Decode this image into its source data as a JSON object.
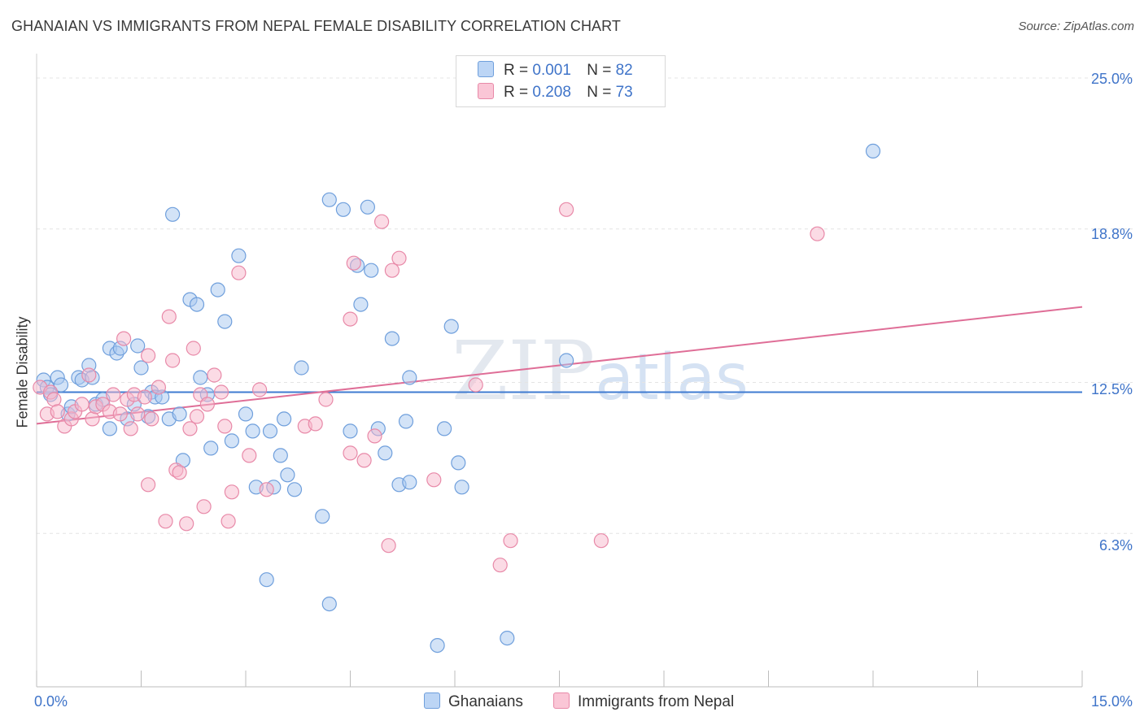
{
  "header": {
    "title": "GHANAIAN VS IMMIGRANTS FROM NEPAL FEMALE DISABILITY CORRELATION CHART",
    "source": "Source: ZipAtlas.com"
  },
  "watermark": {
    "zip": "ZIP",
    "atlas": "atlas"
  },
  "legend": {
    "row1": {
      "r_label": "R =",
      "r_value": "0.001",
      "n_label": "N =",
      "n_value": "82"
    },
    "row2": {
      "r_label": "R =",
      "r_value": "0.208",
      "n_label": "N =",
      "n_value": "73"
    }
  },
  "bottom_legend": {
    "series1": "Ghanaians",
    "series2": "Immigrants from Nepal"
  },
  "colors": {
    "blue_fill": "#a8c8f0",
    "blue_stroke": "#6f9fdc",
    "blue_line": "#3f7bd0",
    "pink_fill": "#f7b7cb",
    "pink_stroke": "#e889a8",
    "pink_line": "#df6e97",
    "tick_text": "#3f74c9",
    "grid": "#e4e4e4"
  },
  "chart_data": {
    "type": "scatter",
    "title": "GHANAIAN VS IMMIGRANTS FROM NEPAL FEMALE DISABILITY CORRELATION CHART",
    "xlabel": "",
    "ylabel": "Female Disability",
    "xlim": [
      0,
      15
    ],
    "ylim": [
      0,
      25.8
    ],
    "x_tick_labels": [
      "0.0%",
      "15.0%"
    ],
    "y_ticks": [
      6.3,
      12.5,
      18.8,
      25.0
    ],
    "y_tick_labels": [
      "6.3%",
      "12.5%",
      "18.8%",
      "25.0%"
    ],
    "grid": "horizontal dashed",
    "legend_position": "top-center",
    "series": [
      {
        "name": "Ghanaians",
        "R": 0.001,
        "N": 82,
        "trend": {
          "x": [
            0,
            15
          ],
          "y": [
            12.1,
            12.1
          ]
        },
        "points": [
          [
            0.1,
            12.6
          ],
          [
            0.15,
            12.3
          ],
          [
            0.2,
            12.0
          ],
          [
            0.3,
            12.7
          ],
          [
            0.35,
            12.4
          ],
          [
            0.45,
            11.2
          ],
          [
            0.5,
            11.5
          ],
          [
            0.6,
            12.7
          ],
          [
            0.65,
            12.6
          ],
          [
            0.75,
            13.2
          ],
          [
            0.8,
            12.7
          ],
          [
            0.85,
            11.6
          ],
          [
            0.95,
            11.8
          ],
          [
            1.05,
            10.6
          ],
          [
            1.05,
            13.9
          ],
          [
            1.15,
            13.7
          ],
          [
            1.2,
            13.9
          ],
          [
            1.3,
            11.0
          ],
          [
            1.4,
            11.6
          ],
          [
            1.45,
            14.0
          ],
          [
            1.5,
            13.1
          ],
          [
            1.6,
            11.1
          ],
          [
            1.65,
            12.1
          ],
          [
            1.7,
            11.9
          ],
          [
            1.8,
            11.9
          ],
          [
            1.9,
            11.0
          ],
          [
            1.95,
            19.4
          ],
          [
            2.05,
            11.2
          ],
          [
            2.1,
            9.3
          ],
          [
            2.2,
            15.9
          ],
          [
            2.3,
            15.7
          ],
          [
            2.35,
            12.7
          ],
          [
            2.45,
            12.0
          ],
          [
            2.5,
            9.8
          ],
          [
            2.6,
            16.3
          ],
          [
            2.7,
            15.0
          ],
          [
            2.8,
            10.1
          ],
          [
            2.9,
            17.7
          ],
          [
            3.0,
            11.2
          ],
          [
            3.1,
            10.5
          ],
          [
            3.15,
            8.2
          ],
          [
            3.3,
            4.4
          ],
          [
            3.35,
            10.5
          ],
          [
            3.4,
            8.2
          ],
          [
            3.5,
            9.5
          ],
          [
            3.55,
            11.0
          ],
          [
            3.6,
            8.7
          ],
          [
            3.7,
            8.1
          ],
          [
            3.8,
            13.1
          ],
          [
            4.1,
            7.0
          ],
          [
            4.2,
            3.4
          ],
          [
            4.2,
            20.0
          ],
          [
            4.4,
            19.6
          ],
          [
            4.5,
            10.5
          ],
          [
            4.6,
            17.3
          ],
          [
            4.65,
            15.7
          ],
          [
            4.75,
            19.7
          ],
          [
            4.8,
            17.1
          ],
          [
            4.9,
            10.6
          ],
          [
            5.0,
            9.6
          ],
          [
            5.1,
            14.3
          ],
          [
            5.2,
            8.3
          ],
          [
            5.3,
            10.9
          ],
          [
            5.35,
            8.4
          ],
          [
            5.35,
            12.7
          ],
          [
            5.75,
            1.7
          ],
          [
            5.85,
            10.6
          ],
          [
            5.95,
            14.8
          ],
          [
            6.05,
            9.2
          ],
          [
            6.1,
            8.2
          ],
          [
            6.75,
            2.0
          ],
          [
            7.6,
            13.4
          ],
          [
            12.0,
            22.0
          ]
        ]
      },
      {
        "name": "Immigrants from Nepal",
        "R": 0.208,
        "N": 73,
        "trend": {
          "x": [
            0,
            15
          ],
          "y": [
            10.8,
            15.6
          ]
        },
        "points": [
          [
            0.05,
            12.3
          ],
          [
            0.15,
            11.2
          ],
          [
            0.2,
            12.1
          ],
          [
            0.25,
            11.8
          ],
          [
            0.3,
            11.3
          ],
          [
            0.4,
            10.7
          ],
          [
            0.5,
            11.0
          ],
          [
            0.55,
            11.3
          ],
          [
            0.65,
            11.6
          ],
          [
            0.75,
            12.8
          ],
          [
            0.8,
            11.0
          ],
          [
            0.85,
            11.5
          ],
          [
            0.95,
            11.6
          ],
          [
            1.05,
            11.3
          ],
          [
            1.1,
            12.0
          ],
          [
            1.2,
            11.2
          ],
          [
            1.25,
            14.3
          ],
          [
            1.3,
            11.8
          ],
          [
            1.35,
            10.6
          ],
          [
            1.4,
            12.0
          ],
          [
            1.45,
            11.2
          ],
          [
            1.55,
            11.9
          ],
          [
            1.6,
            8.3
          ],
          [
            1.6,
            13.6
          ],
          [
            1.65,
            11.0
          ],
          [
            1.75,
            12.3
          ],
          [
            1.85,
            6.8
          ],
          [
            1.9,
            15.2
          ],
          [
            1.95,
            13.4
          ],
          [
            2.0,
            8.9
          ],
          [
            2.05,
            8.8
          ],
          [
            2.15,
            6.7
          ],
          [
            2.2,
            10.6
          ],
          [
            2.25,
            13.9
          ],
          [
            2.3,
            11.1
          ],
          [
            2.35,
            12.0
          ],
          [
            2.4,
            7.4
          ],
          [
            2.45,
            11.6
          ],
          [
            2.55,
            12.8
          ],
          [
            2.65,
            12.1
          ],
          [
            2.7,
            10.7
          ],
          [
            2.75,
            6.8
          ],
          [
            2.8,
            8.0
          ],
          [
            2.9,
            17.0
          ],
          [
            3.05,
            9.5
          ],
          [
            3.2,
            12.2
          ],
          [
            3.3,
            8.1
          ],
          [
            3.85,
            10.7
          ],
          [
            4.0,
            10.8
          ],
          [
            4.15,
            11.8
          ],
          [
            4.5,
            15.1
          ],
          [
            4.5,
            9.6
          ],
          [
            4.55,
            17.4
          ],
          [
            4.7,
            9.3
          ],
          [
            4.85,
            10.3
          ],
          [
            4.95,
            19.1
          ],
          [
            5.05,
            5.8
          ],
          [
            5.1,
            17.1
          ],
          [
            5.2,
            17.6
          ],
          [
            5.7,
            8.5
          ],
          [
            6.3,
            12.4
          ],
          [
            6.65,
            5.0
          ],
          [
            6.8,
            6.0
          ],
          [
            7.6,
            19.6
          ],
          [
            8.1,
            6.0
          ],
          [
            11.2,
            18.6
          ]
        ]
      }
    ]
  }
}
